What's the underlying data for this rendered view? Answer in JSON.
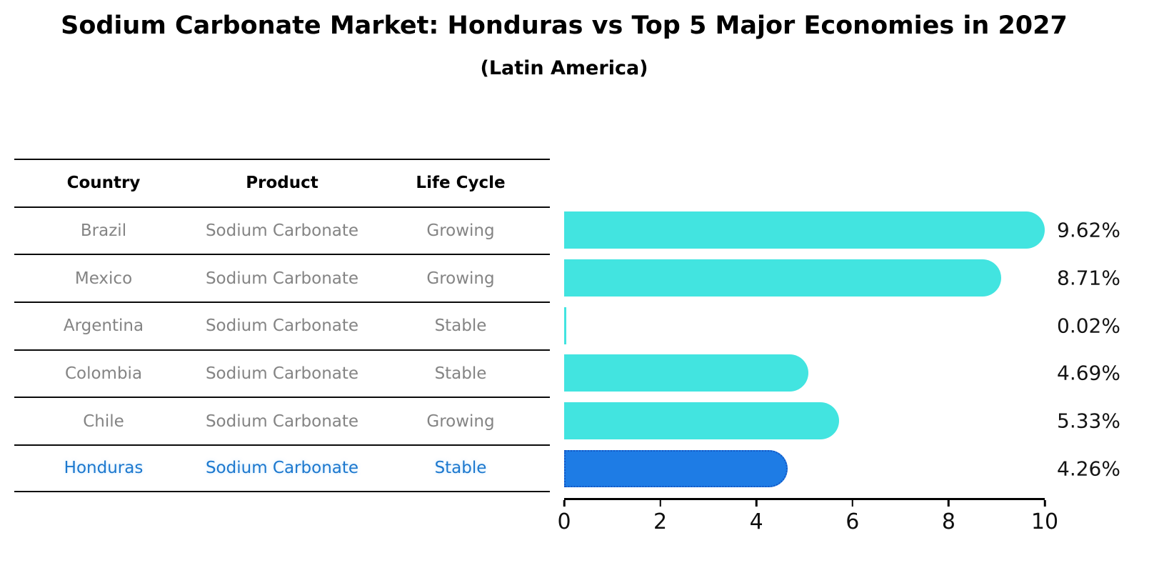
{
  "title": "Sodium Carbonate Market: Honduras vs Top 5 Major Economies in 2027",
  "subtitle": "(Latin America)",
  "table": {
    "headers": [
      "Country",
      "Product",
      "Life Cycle"
    ],
    "rows": [
      {
        "country": "Brazil",
        "product": "Sodium Carbonate",
        "life_cycle": "Growing",
        "highlight": false
      },
      {
        "country": "Mexico",
        "product": "Sodium Carbonate",
        "life_cycle": "Growing",
        "highlight": false
      },
      {
        "country": "Argentina",
        "product": "Sodium Carbonate",
        "life_cycle": "Stable",
        "highlight": false
      },
      {
        "country": "Colombia",
        "product": "Sodium Carbonate",
        "life_cycle": "Stable",
        "highlight": false
      },
      {
        "country": "Chile",
        "product": "Sodium Carbonate",
        "life_cycle": "Growing",
        "highlight": false
      },
      {
        "country": "Honduras",
        "product": "Sodium Carbonate",
        "life_cycle": "Stable",
        "highlight": true
      }
    ]
  },
  "chart_data": {
    "type": "bar",
    "orientation": "horizontal",
    "title": "Sodium Carbonate Market: Honduras vs Top 5 Major Economies in 2027 (Latin America)",
    "categories": [
      "Brazil",
      "Mexico",
      "Argentina",
      "Colombia",
      "Chile",
      "Honduras"
    ],
    "values": [
      9.62,
      8.71,
      0.02,
      4.69,
      5.33,
      4.26
    ],
    "value_labels": [
      "9.62%",
      "8.71%",
      "0.02%",
      "4.69%",
      "5.33%",
      "4.26%"
    ],
    "xlabel": "",
    "ylabel": "",
    "xlim": [
      0,
      10
    ],
    "x_ticks": [
      0,
      2,
      4,
      6,
      8,
      10
    ],
    "grid": false,
    "legend": "none",
    "bar_color": "#42e4e0",
    "highlight_color": "#1e7ce5",
    "highlight_border_color": "#1457c4",
    "highlight_index": 5,
    "highlight_text_color": "#1c78ce"
  }
}
